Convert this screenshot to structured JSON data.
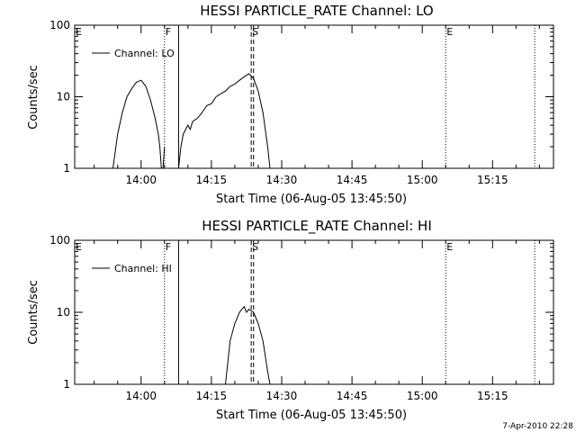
{
  "chart_data": [
    {
      "type": "line",
      "title": "HESSI PARTICLE_RATE Channel: LO",
      "xlabel": "Start Time (06-Aug-05 13:45:50)",
      "ylabel": "Counts/sec",
      "yscale": "log",
      "ylim": [
        1,
        100
      ],
      "xlim": [
        "13:45:50",
        "15:28:00"
      ],
      "xticks": [
        "14:00",
        "14:15",
        "14:30",
        "14:45",
        "15:00",
        "15:15"
      ],
      "yticks": [
        "1",
        "10",
        "100"
      ],
      "legend": {
        "entries": [
          "Channel: LO"
        ],
        "placement": "top-left"
      },
      "markers": [
        {
          "label": "E",
          "time": "13:45:50",
          "style": "dotted"
        },
        {
          "label": "F",
          "time": "14:05:00",
          "style": "dotted"
        },
        {
          "label": "",
          "time": "14:08:00",
          "style": "solid"
        },
        {
          "label": "S",
          "time": "14:23:30",
          "style": "dashed"
        },
        {
          "label": "",
          "time": "14:24:00",
          "style": "dashed"
        },
        {
          "label": "E",
          "time": "15:05:00",
          "style": "dotted"
        },
        {
          "label": "",
          "time": "15:24:00",
          "style": "dotted"
        }
      ],
      "series": [
        {
          "name": "Channel: LO",
          "segments": [
            [
              [
                "13:54:00",
                1
              ],
              [
                "13:55:00",
                3
              ],
              [
                "13:56:00",
                6
              ],
              [
                "13:57:00",
                10
              ],
              [
                "13:58:00",
                13
              ],
              [
                "13:59:00",
                16
              ],
              [
                "14:00:00",
                17
              ],
              [
                "14:01:00",
                14
              ],
              [
                "14:02:00",
                9
              ],
              [
                "14:03:00",
                5
              ],
              [
                "14:03:40",
                3
              ],
              [
                "14:04:00",
                2
              ],
              [
                "14:04:20",
                1
              ]
            ],
            [
              [
                "14:04:40",
                1
              ],
              [
                "14:05:00",
                2
              ]
            ],
            [
              [
                "14:08:00",
                1
              ],
              [
                "14:08:30",
                2
              ],
              [
                "14:09:00",
                3
              ],
              [
                "14:10:00",
                4
              ],
              [
                "14:10:30",
                3.5
              ],
              [
                "14:11:00",
                4.5
              ],
              [
                "14:12:00",
                5
              ],
              [
                "14:13:00",
                6
              ],
              [
                "14:14:00",
                7.5
              ],
              [
                "14:15:00",
                8
              ],
              [
                "14:16:00",
                10
              ],
              [
                "14:17:00",
                11
              ],
              [
                "14:18:00",
                12
              ],
              [
                "14:19:00",
                14
              ],
              [
                "14:20:00",
                15
              ],
              [
                "14:21:00",
                17
              ],
              [
                "14:22:00",
                19
              ],
              [
                "14:23:00",
                21
              ],
              [
                "14:24:00",
                18
              ],
              [
                "14:25:00",
                12
              ],
              [
                "14:26:00",
                6
              ],
              [
                "14:27:00",
                2
              ],
              [
                "14:27:30",
                1
              ]
            ]
          ]
        }
      ]
    },
    {
      "type": "line",
      "title": "HESSI PARTICLE_RATE Channel: HI",
      "xlabel": "Start Time (06-Aug-05 13:45:50)",
      "ylabel": "Counts/sec",
      "yscale": "log",
      "ylim": [
        1,
        100
      ],
      "xlim": [
        "13:45:50",
        "15:28:00"
      ],
      "xticks": [
        "14:00",
        "14:15",
        "14:30",
        "14:45",
        "15:00",
        "15:15"
      ],
      "yticks": [
        "1",
        "10",
        "100"
      ],
      "legend": {
        "entries": [
          "Channel: HI"
        ],
        "placement": "top-left"
      },
      "markers": [
        {
          "label": "E",
          "time": "13:45:50",
          "style": "dotted"
        },
        {
          "label": "F",
          "time": "14:05:00",
          "style": "dotted"
        },
        {
          "label": "",
          "time": "14:08:00",
          "style": "solid"
        },
        {
          "label": "S",
          "time": "14:23:30",
          "style": "dashed"
        },
        {
          "label": "",
          "time": "14:24:00",
          "style": "dashed"
        },
        {
          "label": "E",
          "time": "15:05:00",
          "style": "dotted"
        },
        {
          "label": "",
          "time": "15:24:00",
          "style": "dotted"
        }
      ],
      "series": [
        {
          "name": "Channel: HI",
          "segments": [
            [
              [
                "14:18:00",
                1
              ],
              [
                "14:18:30",
                2
              ],
              [
                "14:19:00",
                4
              ],
              [
                "14:20:00",
                7
              ],
              [
                "14:21:00",
                10
              ],
              [
                "14:21:30",
                11
              ],
              [
                "14:22:00",
                12
              ],
              [
                "14:22:30",
                10
              ],
              [
                "14:23:00",
                11
              ],
              [
                "14:24:00",
                10
              ],
              [
                "14:25:00",
                7
              ],
              [
                "14:26:00",
                4
              ],
              [
                "14:27:00",
                1.5
              ],
              [
                "14:27:30",
                1
              ]
            ]
          ]
        }
      ]
    }
  ],
  "footer": {
    "timestamp": "7-Apr-2010 22:28"
  }
}
